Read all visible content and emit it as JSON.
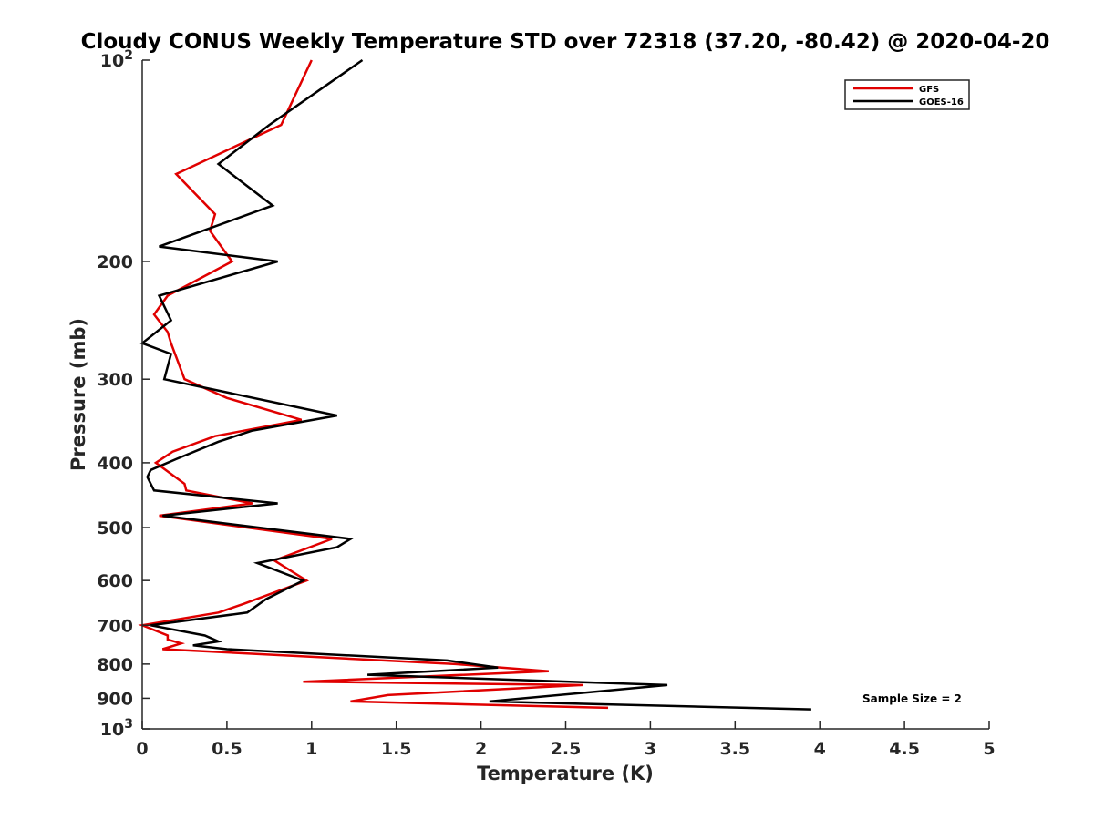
{
  "chart_data": {
    "type": "line",
    "title": "Cloudy CONUS Weekly Temperature STD over 72318 (37.20, -80.42) @ 2020-04-20",
    "xlabel": "Temperature (K)",
    "ylabel": "Pressure (mb)",
    "xlim": [
      0,
      5
    ],
    "ylim": [
      100,
      1000
    ],
    "y_scale": "log",
    "y_reversed": true,
    "x_ticks": [
      "0",
      "0.5",
      "1",
      "1.5",
      "2",
      "2.5",
      "3",
      "3.5",
      "4",
      "4.5",
      "5"
    ],
    "y_ticks": [
      {
        "value": 100,
        "base": "10",
        "exp": "2"
      },
      {
        "value": 200,
        "label": "200"
      },
      {
        "value": 300,
        "label": "300"
      },
      {
        "value": 400,
        "label": "400"
      },
      {
        "value": 500,
        "label": "500"
      },
      {
        "value": 600,
        "label": "600"
      },
      {
        "value": 700,
        "label": "700"
      },
      {
        "value": 800,
        "label": "800"
      },
      {
        "value": 900,
        "label": "900"
      },
      {
        "value": 1000,
        "base": "10",
        "exp": "3"
      }
    ],
    "grid": false,
    "legend_position": "top-right",
    "annotation": "Sample Size = 2",
    "series": [
      {
        "name": "GFS",
        "color": "#e00000",
        "points": [
          [
            1.0,
            100
          ],
          [
            0.82,
            125
          ],
          [
            0.2,
            148
          ],
          [
            0.43,
            170
          ],
          [
            0.4,
            180
          ],
          [
            0.53,
            200
          ],
          [
            0.15,
            225
          ],
          [
            0.07,
            240
          ],
          [
            0.15,
            255
          ],
          [
            0.17,
            265
          ],
          [
            0.25,
            300
          ],
          [
            0.5,
            320
          ],
          [
            0.94,
            345
          ],
          [
            0.43,
            365
          ],
          [
            0.18,
            385
          ],
          [
            0.08,
            400
          ],
          [
            0.25,
            430
          ],
          [
            0.26,
            440
          ],
          [
            0.65,
            460
          ],
          [
            0.1,
            480
          ],
          [
            1.12,
            520
          ],
          [
            0.78,
            560
          ],
          [
            0.97,
            600
          ],
          [
            0.6,
            650
          ],
          [
            0.45,
            670
          ],
          [
            0.0,
            700
          ],
          [
            0.15,
            725
          ],
          [
            0.15,
            735
          ],
          [
            0.23,
            745
          ],
          [
            0.12,
            760
          ],
          [
            1.85,
            800
          ],
          [
            2.4,
            820
          ],
          [
            0.95,
            850
          ],
          [
            2.6,
            860
          ],
          [
            1.45,
            890
          ],
          [
            1.23,
            910
          ],
          [
            2.75,
            930
          ]
        ]
      },
      {
        "name": "GOES-16",
        "color": "#000000",
        "points": [
          [
            1.3,
            100
          ],
          [
            0.75,
            125
          ],
          [
            0.45,
            143
          ],
          [
            0.77,
            165
          ],
          [
            0.1,
            190
          ],
          [
            0.8,
            200
          ],
          [
            0.1,
            225
          ],
          [
            0.17,
            245
          ],
          [
            0.0,
            265
          ],
          [
            0.17,
            275
          ],
          [
            0.13,
            300
          ],
          [
            1.15,
            340
          ],
          [
            0.65,
            358
          ],
          [
            0.45,
            372
          ],
          [
            0.2,
            395
          ],
          [
            0.05,
            410
          ],
          [
            0.03,
            420
          ],
          [
            0.07,
            440
          ],
          [
            0.8,
            460
          ],
          [
            0.12,
            480
          ],
          [
            1.23,
            520
          ],
          [
            1.15,
            535
          ],
          [
            0.68,
            565
          ],
          [
            0.95,
            600
          ],
          [
            0.73,
            640
          ],
          [
            0.62,
            670
          ],
          [
            0.05,
            700
          ],
          [
            0.37,
            725
          ],
          [
            0.45,
            740
          ],
          [
            0.3,
            750
          ],
          [
            0.5,
            760
          ],
          [
            1.8,
            790
          ],
          [
            2.1,
            810
          ],
          [
            1.33,
            830
          ],
          [
            3.1,
            860
          ],
          [
            2.05,
            910
          ],
          [
            3.95,
            935
          ]
        ]
      }
    ]
  }
}
